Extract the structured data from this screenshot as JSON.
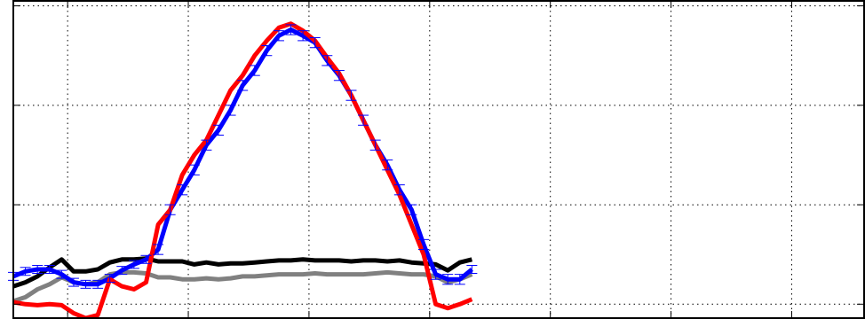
{
  "chart_data": {
    "type": "line",
    "title": "",
    "xlabel": "",
    "ylabel": "",
    "xlim": [
      -0.45,
      6.6
    ],
    "ylim": [
      -0.14,
      3.05
    ],
    "xticks": [
      0,
      1,
      2,
      3,
      4,
      5,
      6
    ],
    "yticks": [
      0,
      1,
      2,
      3
    ],
    "grid": true,
    "grid_style": "dotted",
    "legend": false,
    "x": [
      -0.45,
      -0.35,
      -0.25,
      -0.15,
      -0.05,
      0.05,
      0.15,
      0.25,
      0.35,
      0.45,
      0.55,
      0.65,
      0.75,
      0.85,
      0.95,
      1.05,
      1.15,
      1.25,
      1.35,
      1.45,
      1.55,
      1.65,
      1.75,
      1.85,
      1.95,
      2.05,
      2.15,
      2.25,
      2.35,
      2.45,
      2.55,
      2.65,
      2.75,
      2.85,
      2.95,
      3.05,
      3.15,
      3.25,
      3.35
    ],
    "series": [
      {
        "color": "#0000ff",
        "values": [
          0.28,
          0.33,
          0.35,
          0.35,
          0.3,
          0.22,
          0.2,
          0.2,
          0.26,
          0.34,
          0.4,
          0.45,
          0.55,
          0.95,
          1.15,
          1.35,
          1.6,
          1.75,
          1.95,
          2.2,
          2.35,
          2.55,
          2.7,
          2.76,
          2.7,
          2.63,
          2.45,
          2.3,
          2.1,
          1.85,
          1.6,
          1.4,
          1.15,
          0.95,
          0.6,
          0.3,
          0.25,
          0.25,
          0.35
        ],
        "error": [
          0.04,
          0.04,
          0.04,
          0.04,
          0.04,
          0.04,
          0.04,
          0.04,
          0.04,
          0.04,
          0.04,
          0.04,
          0.05,
          0.05,
          0.05,
          0.05,
          0.05,
          0.05,
          0.05,
          0.05,
          0.05,
          0.05,
          0.05,
          0.05,
          0.05,
          0.05,
          0.05,
          0.05,
          0.05,
          0.05,
          0.05,
          0.05,
          0.05,
          0.05,
          0.05,
          0.05,
          0.05,
          0.05,
          0.04
        ]
      },
      {
        "color": "#ff0000",
        "values": [
          0.02,
          0.0,
          -0.01,
          0.0,
          -0.01,
          -0.09,
          -0.14,
          -0.11,
          0.25,
          0.18,
          0.15,
          0.22,
          0.8,
          0.95,
          1.3,
          1.5,
          1.65,
          1.9,
          2.15,
          2.3,
          2.5,
          2.65,
          2.78,
          2.82,
          2.75,
          2.65,
          2.48,
          2.32,
          2.1,
          1.85,
          1.6,
          1.35,
          1.1,
          0.8,
          0.5,
          0.0,
          -0.04,
          0.0,
          0.05
        ]
      },
      {
        "color": "#000000",
        "values": [
          0.18,
          0.22,
          0.28,
          0.37,
          0.45,
          0.33,
          0.33,
          0.35,
          0.42,
          0.45,
          0.45,
          0.46,
          0.43,
          0.43,
          0.43,
          0.4,
          0.42,
          0.4,
          0.41,
          0.41,
          0.42,
          0.43,
          0.44,
          0.44,
          0.45,
          0.44,
          0.44,
          0.44,
          0.43,
          0.44,
          0.44,
          0.43,
          0.44,
          0.42,
          0.41,
          0.4,
          0.34,
          0.42,
          0.45
        ]
      },
      {
        "color": "#808080",
        "values": [
          0.03,
          0.07,
          0.15,
          0.2,
          0.27,
          0.22,
          0.2,
          0.22,
          0.3,
          0.32,
          0.32,
          0.31,
          0.27,
          0.27,
          0.25,
          0.25,
          0.26,
          0.25,
          0.26,
          0.28,
          0.28,
          0.29,
          0.3,
          0.3,
          0.3,
          0.31,
          0.3,
          0.3,
          0.3,
          0.3,
          0.31,
          0.32,
          0.31,
          0.3,
          0.3,
          0.28,
          0.22,
          0.25,
          0.3
        ]
      }
    ]
  }
}
